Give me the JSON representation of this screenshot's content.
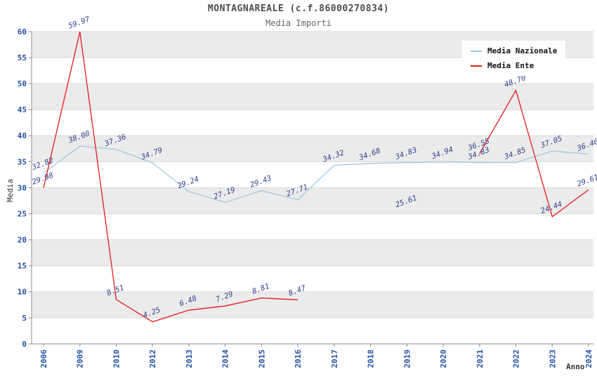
{
  "chart_data": {
    "type": "line",
    "title": "MONTAGNAREALE (c.f.86000270834)",
    "subtitle": "Media Importi",
    "xlabel": "Anno",
    "ylabel": "Media",
    "ylim": [
      0,
      60
    ],
    "y_step": 5,
    "grid": true,
    "legend_position": "top-right",
    "band_color": "#ebebeb",
    "categories": [
      "2006",
      "2009",
      "2010",
      "2012",
      "2013",
      "2014",
      "2015",
      "2016",
      "2017",
      "2018",
      "2019",
      "2020",
      "2021",
      "2022",
      "2023",
      "2024"
    ],
    "series": [
      {
        "name": "Media Nazionale",
        "color": "#9ecae1",
        "values": [
          32.82,
          38.0,
          37.36,
          34.79,
          29.24,
          27.19,
          29.43,
          27.71,
          34.32,
          34.68,
          34.83,
          34.94,
          34.83,
          34.85,
          37.05,
          36.46
        ]
      },
      {
        "name": "Media Ente",
        "color": "#e31a1c",
        "values": [
          29.98,
          59.97,
          8.51,
          4.25,
          6.48,
          7.29,
          8.81,
          8.47,
          null,
          null,
          25.61,
          null,
          36.55,
          48.7,
          24.44,
          29.61
        ]
      }
    ]
  },
  "legend": {
    "items": [
      {
        "label": "Media Nazionale",
        "color": "#9ecae1"
      },
      {
        "label": "Media Ente",
        "color": "#e31a1c"
      }
    ]
  }
}
